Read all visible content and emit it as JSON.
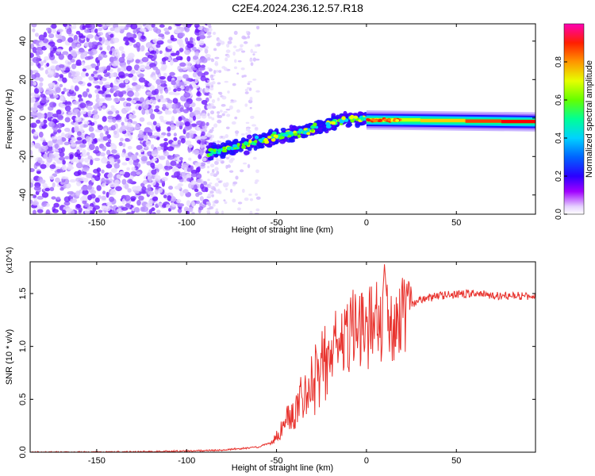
{
  "title": "C2E4.2024.236.12.57.R18",
  "chart_data": [
    {
      "type": "heatmap",
      "xlabel": "Height of straight line (km)",
      "ylabel": "Frequency (Hz)",
      "xlim": [
        -187,
        94
      ],
      "ylim": [
        -50,
        49
      ],
      "xticks": [
        -150,
        -100,
        -50,
        0,
        50
      ],
      "yticks": [
        -40,
        -20,
        0,
        20,
        40
      ],
      "colorbar": {
        "label": "Normalized spectral amplitude",
        "range": [
          0,
          1
        ],
        "ticks": [
          "0.0",
          "0.2",
          "0.4",
          "0.6",
          "0.8"
        ],
        "colors": [
          "#ffffff",
          "#c8a2ff",
          "#6a00ff",
          "#0000ff",
          "#00c8ff",
          "#00ff80",
          "#80ff00",
          "#ffff00",
          "#ff8000",
          "#ff0000",
          "#ff00ff"
        ]
      },
      "features": {
        "noise_region_x": [
          -187,
          -88
        ],
        "sparse_noise_x": [
          -88,
          -60
        ],
        "rising_trace": {
          "x": [
            -88,
            -50,
            -30,
            -15,
            0
          ],
          "y": [
            -18,
            -10,
            -6,
            -1,
            0
          ]
        },
        "steady_trace": {
          "x": [
            0,
            94
          ],
          "y": [
            -1,
            -2
          ]
        }
      }
    },
    {
      "type": "line",
      "xlabel": "Height of straight line (km)",
      "ylabel": "SNR (10 * v/v)",
      "y_multiplier": "(x10^4)",
      "xlim": [
        -187,
        94
      ],
      "ylim": [
        0,
        1.8
      ],
      "xticks": [
        -150,
        -100,
        -50,
        0,
        50
      ],
      "yticks": [
        "0.0",
        "0.5",
        "1.0",
        "1.5"
      ],
      "color": "#e8332e",
      "series": [
        {
          "x": [
            -187,
            -150,
            -100,
            -80,
            -60,
            -52,
            -48,
            -44,
            -40,
            -36,
            -32,
            -28,
            -24,
            -20,
            -16,
            -12,
            -8,
            -4,
            0,
            4,
            8,
            10,
            12,
            16,
            20,
            25,
            30,
            40,
            50,
            60,
            70,
            80,
            94
          ],
          "y": [
            0.0,
            0.0,
            0.01,
            0.02,
            0.05,
            0.1,
            0.2,
            0.3,
            0.4,
            0.5,
            0.6,
            0.7,
            0.8,
            0.9,
            1.0,
            1.05,
            1.15,
            1.2,
            1.1,
            1.3,
            1.15,
            1.78,
            1.3,
            1.2,
            1.3,
            1.38,
            1.44,
            1.48,
            1.49,
            1.5,
            1.48,
            1.48,
            1.47
          ]
        }
      ]
    }
  ]
}
